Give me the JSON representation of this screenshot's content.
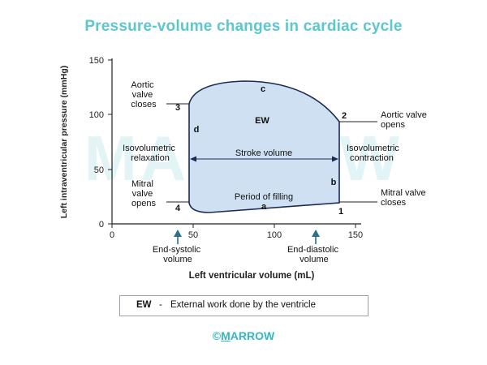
{
  "title": "Pressure-volume changes in cardiac cycle",
  "watermark": "MARROW",
  "footer": {
    "copyright": "©",
    "first_letter": "M",
    "rest": "ARROW"
  },
  "legend": {
    "key": "EW",
    "separator": "-",
    "description": "External work done by the ventricle"
  },
  "axes": {
    "ylabel": "Left intraventricular pressure (mmHg)",
    "xlabel": "Left ventricular volume (mL)",
    "x_ticks": [
      "0",
      "50",
      "100",
      "150"
    ],
    "y_ticks": [
      "0",
      "50",
      "100",
      "150"
    ]
  },
  "points": {
    "p1": "1",
    "p2": "2",
    "p3": "3",
    "p4": "4"
  },
  "segments": {
    "a": "a",
    "b": "b",
    "c": "c",
    "d": "d"
  },
  "inner": {
    "ew": "EW",
    "stroke_volume": "Stroke volume",
    "period_of_filling": "Period of filling"
  },
  "annotations": {
    "aortic_closes": [
      "Aortic",
      "valve",
      "closes"
    ],
    "aortic_opens": [
      "Aortic valve",
      "opens"
    ],
    "iso_relax": [
      "Isovolumetric",
      "relaxation"
    ],
    "iso_contract": [
      "Isovolumetric",
      "contraction"
    ],
    "mitral_opens": [
      "Mitral",
      "valve",
      "opens"
    ],
    "mitral_closes": [
      "Mitral valve",
      "closes"
    ],
    "end_systolic": [
      "End-systolic",
      "volume"
    ],
    "end_diastolic": [
      "End-diastolic",
      "volume"
    ]
  },
  "colors": {
    "title": "#5cc7cf",
    "loop_fill": "#cfe0f2",
    "loop_stroke": "#1b2a52",
    "arrow": "#2d6f8c",
    "watermark": "#e3f4f6"
  }
}
